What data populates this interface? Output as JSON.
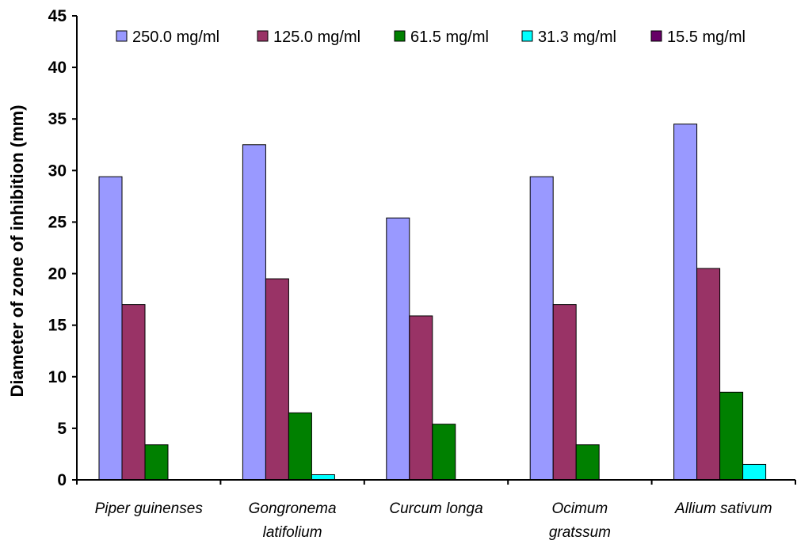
{
  "chart_data": {
    "type": "bar",
    "title": "",
    "xlabel": "",
    "ylabel": "Diameter of zone of inhibition (mm)",
    "ylim": [
      0,
      45
    ],
    "yticks": [
      "0",
      "5",
      "10",
      "15",
      "20",
      "25",
      "30",
      "35",
      "40",
      "45"
    ],
    "grid": false,
    "legend_position": "top",
    "categories": [
      [
        "Piper guinenses"
      ],
      [
        "Gongronema",
        "latifolium"
      ],
      [
        "Curcum longa"
      ],
      [
        "Ocimum",
        "gratssum"
      ],
      [
        "Allium sativum"
      ]
    ],
    "series": [
      {
        "name": "250.0 mg/ml",
        "color": "#9999ff",
        "values": [
          29.4,
          32.5,
          25.4,
          29.4,
          34.5
        ]
      },
      {
        "name": "125.0 mg/ml",
        "color": "#993366",
        "values": [
          17.0,
          19.5,
          15.9,
          17.0,
          20.5
        ]
      },
      {
        "name": "61.5 mg/ml",
        "color": "#008000",
        "values": [
          3.4,
          6.5,
          5.4,
          3.4,
          8.5
        ]
      },
      {
        "name": "31.3 mg/ml",
        "color": "#00ffff",
        "values": [
          0,
          0.5,
          0,
          0,
          1.5
        ]
      },
      {
        "name": "15.5 mg/ml",
        "color": "#660066",
        "values": [
          0,
          0,
          0,
          0,
          0
        ]
      }
    ]
  }
}
